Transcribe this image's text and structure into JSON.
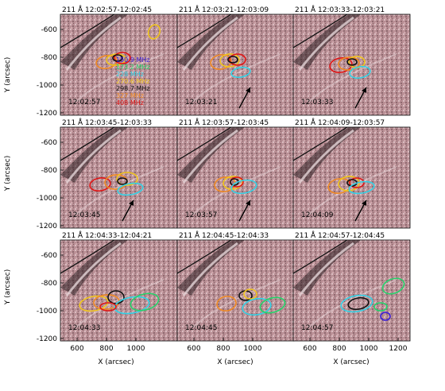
{
  "figure": {
    "x_axis_label": "X (arcsec)",
    "y_axis_label": "Y (arcsec)",
    "x_ticks": [
      "600",
      "800",
      "1000",
      "1200"
    ],
    "y_ticks": [
      "-600",
      "-800",
      "-1000",
      "-1200"
    ],
    "legend": [
      {
        "label": "150.9 MHz",
        "color": "#3b1fd6"
      },
      {
        "label": "173.2 MHz",
        "color": "#25d36b"
      },
      {
        "label": "228 MHz",
        "color": "#33d2e6"
      },
      {
        "label": "270.6 MHz",
        "color": "#f0c51d"
      },
      {
        "label": "298.7 MHz",
        "color": "#111111"
      },
      {
        "label": "327 MHz",
        "color": "#f08a24"
      },
      {
        "label": "408 MHz",
        "color": "#e01515"
      }
    ],
    "panels": [
      {
        "title": "211 Å 12:02:57-12:02:45",
        "time": "12:02:57",
        "arrow": false
      },
      {
        "title": "211 Å 12:03:21-12:03:09",
        "time": "12:03:21",
        "arrow": true
      },
      {
        "title": "211 Å 12:03:33-12:03:21",
        "time": "12:03:33",
        "arrow": true
      },
      {
        "title": "211 Å 12:03:45-12:03:33",
        "time": "12:03:45",
        "arrow": true
      },
      {
        "title": "211 Å 12:03:57-12:03:45",
        "time": "12:03:57",
        "arrow": true
      },
      {
        "title": "211 Å 12:04:09-12:03:57",
        "time": "12:04:09",
        "arrow": true
      },
      {
        "title": "211 Å 12:04:33-12:04:21",
        "time": "12:04:33",
        "arrow": false
      },
      {
        "title": "211 Å 12:04:45-12:04:33",
        "time": "12:04:45",
        "arrow": false
      },
      {
        "title": "211 Å 12:04:57-12:04:45",
        "time": "12:04:57",
        "arrow": false
      }
    ]
  }
}
